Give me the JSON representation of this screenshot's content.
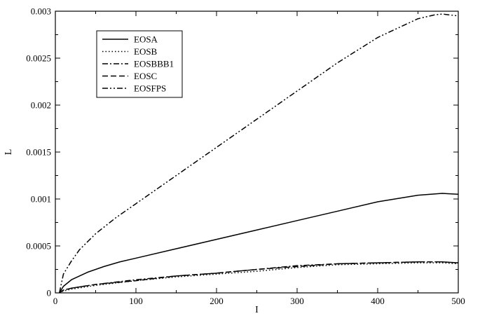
{
  "chart_data": {
    "type": "line",
    "xlabel": "I",
    "ylabel": "L",
    "xlim": [
      0,
      500
    ],
    "ylim": [
      0,
      0.003
    ],
    "x_ticks": [
      0,
      100,
      200,
      300,
      400,
      500
    ],
    "x_tick_labels": [
      "0",
      "100",
      "200",
      "300",
      "400",
      "500"
    ],
    "y_ticks": [
      0,
      0.0005,
      0.001,
      0.0015,
      0.002,
      0.0025,
      0.003
    ],
    "y_tick_labels": [
      "0",
      "0.0005",
      "0.001",
      "0.0015",
      "0.002",
      "0.0025",
      "0.003"
    ],
    "grid": false,
    "legend_position": "top-left",
    "series": [
      {
        "name": "EOSA",
        "dash": "solid",
        "x": [
          5,
          10,
          20,
          40,
          60,
          80,
          100,
          150,
          200,
          250,
          300,
          350,
          400,
          450,
          480,
          500
        ],
        "y": [
          0.0,
          7e-05,
          0.00014,
          0.00022,
          0.00028,
          0.00033,
          0.00037,
          0.00047,
          0.00057,
          0.00067,
          0.00077,
          0.00087,
          0.00097,
          0.00104,
          0.00106,
          0.00105
        ]
      },
      {
        "name": "EOSB",
        "dash": "dotted",
        "x": [
          5,
          10,
          20,
          50,
          100,
          150,
          200,
          250,
          300,
          350,
          400,
          450,
          480,
          500
        ],
        "y": [
          0.0,
          2e-05,
          4e-05,
          8e-05,
          0.00013,
          0.00017,
          0.0002,
          0.00023,
          0.00027,
          0.0003,
          0.00031,
          0.00032,
          0.00032,
          0.00031
        ]
      },
      {
        "name": "EOSBBB1",
        "dash": "dash-dot",
        "x": [
          5,
          10,
          20,
          50,
          100,
          150,
          200,
          250,
          300,
          350,
          400,
          450,
          480,
          500
        ],
        "y": [
          0.0,
          3e-05,
          5e-05,
          9e-05,
          0.00014,
          0.00018,
          0.00021,
          0.00025,
          0.00029,
          0.00031,
          0.00032,
          0.00033,
          0.00033,
          0.00032
        ]
      },
      {
        "name": "EOSC",
        "dash": "dashed",
        "x": [
          5,
          10,
          20,
          50,
          100,
          150,
          200,
          250,
          300,
          350,
          400,
          450,
          480,
          500
        ],
        "y": [
          0.0,
          3e-05,
          5e-05,
          9e-05,
          0.00013,
          0.00018,
          0.00021,
          0.00025,
          0.00028,
          0.00031,
          0.00032,
          0.00033,
          0.00033,
          0.00032
        ]
      },
      {
        "name": "EOSFPS",
        "dash": "dash-dot-dot",
        "x": [
          5,
          10,
          20,
          30,
          50,
          75,
          100,
          150,
          200,
          250,
          300,
          350,
          400,
          450,
          470,
          480,
          500
        ],
        "y": [
          0.0,
          0.0002,
          0.00034,
          0.00046,
          0.00063,
          0.0008,
          0.00095,
          0.00125,
          0.00155,
          0.00185,
          0.00215,
          0.00245,
          0.00272,
          0.00292,
          0.00296,
          0.00297,
          0.00295
        ]
      }
    ]
  }
}
